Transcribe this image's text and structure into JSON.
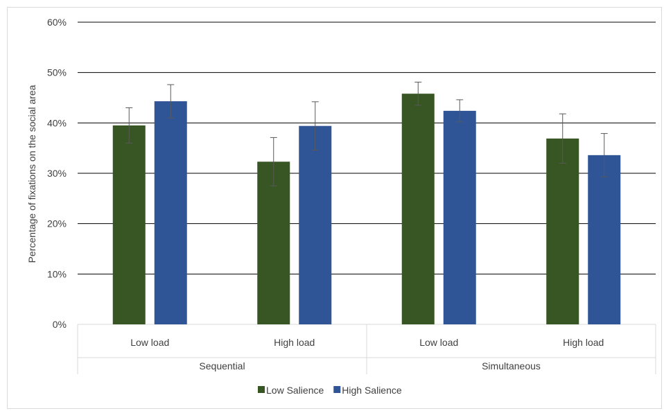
{
  "chart_data": {
    "type": "bar",
    "ylabel": "Percentage of fixations on the social area",
    "ylim": [
      0,
      60
    ],
    "yticks": [
      "0%",
      "10%",
      "20%",
      "30%",
      "40%",
      "50%",
      "60%"
    ],
    "ytick_values": [
      0,
      10,
      20,
      30,
      40,
      50,
      60
    ],
    "grid": true,
    "legend_position": "bottom",
    "groups": [
      {
        "label": "Sequential",
        "categories": [
          "Low load",
          "High load"
        ]
      },
      {
        "label": "Simultaneous",
        "categories": [
          "Low load",
          "High load"
        ]
      }
    ],
    "categories": [
      "Low load",
      "High load",
      "Low load",
      "High load"
    ],
    "series": [
      {
        "name": "Low Salience",
        "color": "#375623",
        "values": [
          39.5,
          32.3,
          45.8,
          36.9
        ],
        "error": [
          3.5,
          4.8,
          2.3,
          4.9
        ]
      },
      {
        "name": "High Salience",
        "color": "#2F5597",
        "values": [
          44.3,
          39.4,
          42.4,
          33.6
        ],
        "error": [
          3.3,
          4.8,
          2.2,
          4.3
        ]
      }
    ]
  }
}
